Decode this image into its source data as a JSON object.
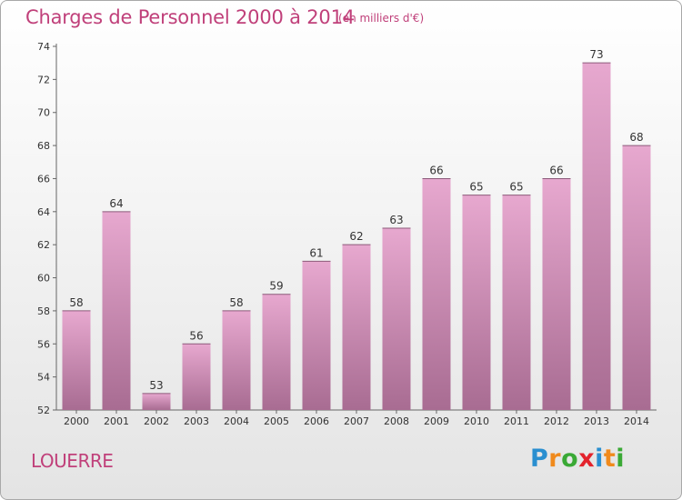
{
  "title": "Charges de Personnel 2000 à 2014",
  "units": "(en milliers d'€)",
  "commune": "LOUERRE",
  "logo": {
    "letters": [
      "P",
      "r",
      "o",
      "x",
      "i",
      "t",
      "i"
    ],
    "colors": [
      "#2a8fd0",
      "#f08a1c",
      "#3aa935",
      "#e3232c",
      "#2a8fd0",
      "#f08a1c",
      "#3aa935"
    ]
  },
  "colors": {
    "bar_top": "#e7a8cf",
    "bar_bottom": "#a86c92",
    "title": "#c0407a"
  },
  "chart_data": {
    "type": "bar",
    "categories": [
      "2000",
      "2001",
      "2002",
      "2003",
      "2004",
      "2005",
      "2006",
      "2007",
      "2008",
      "2009",
      "2010",
      "2011",
      "2012",
      "2013",
      "2014"
    ],
    "values": [
      58,
      64,
      53,
      56,
      58,
      59,
      61,
      62,
      63,
      66,
      65,
      65,
      66,
      73,
      68
    ],
    "ylim": [
      52,
      74
    ],
    "yticks": [
      52,
      54,
      56,
      58,
      60,
      62,
      64,
      66,
      68,
      70,
      72,
      74
    ],
    "grid": false,
    "data_labels": true
  }
}
